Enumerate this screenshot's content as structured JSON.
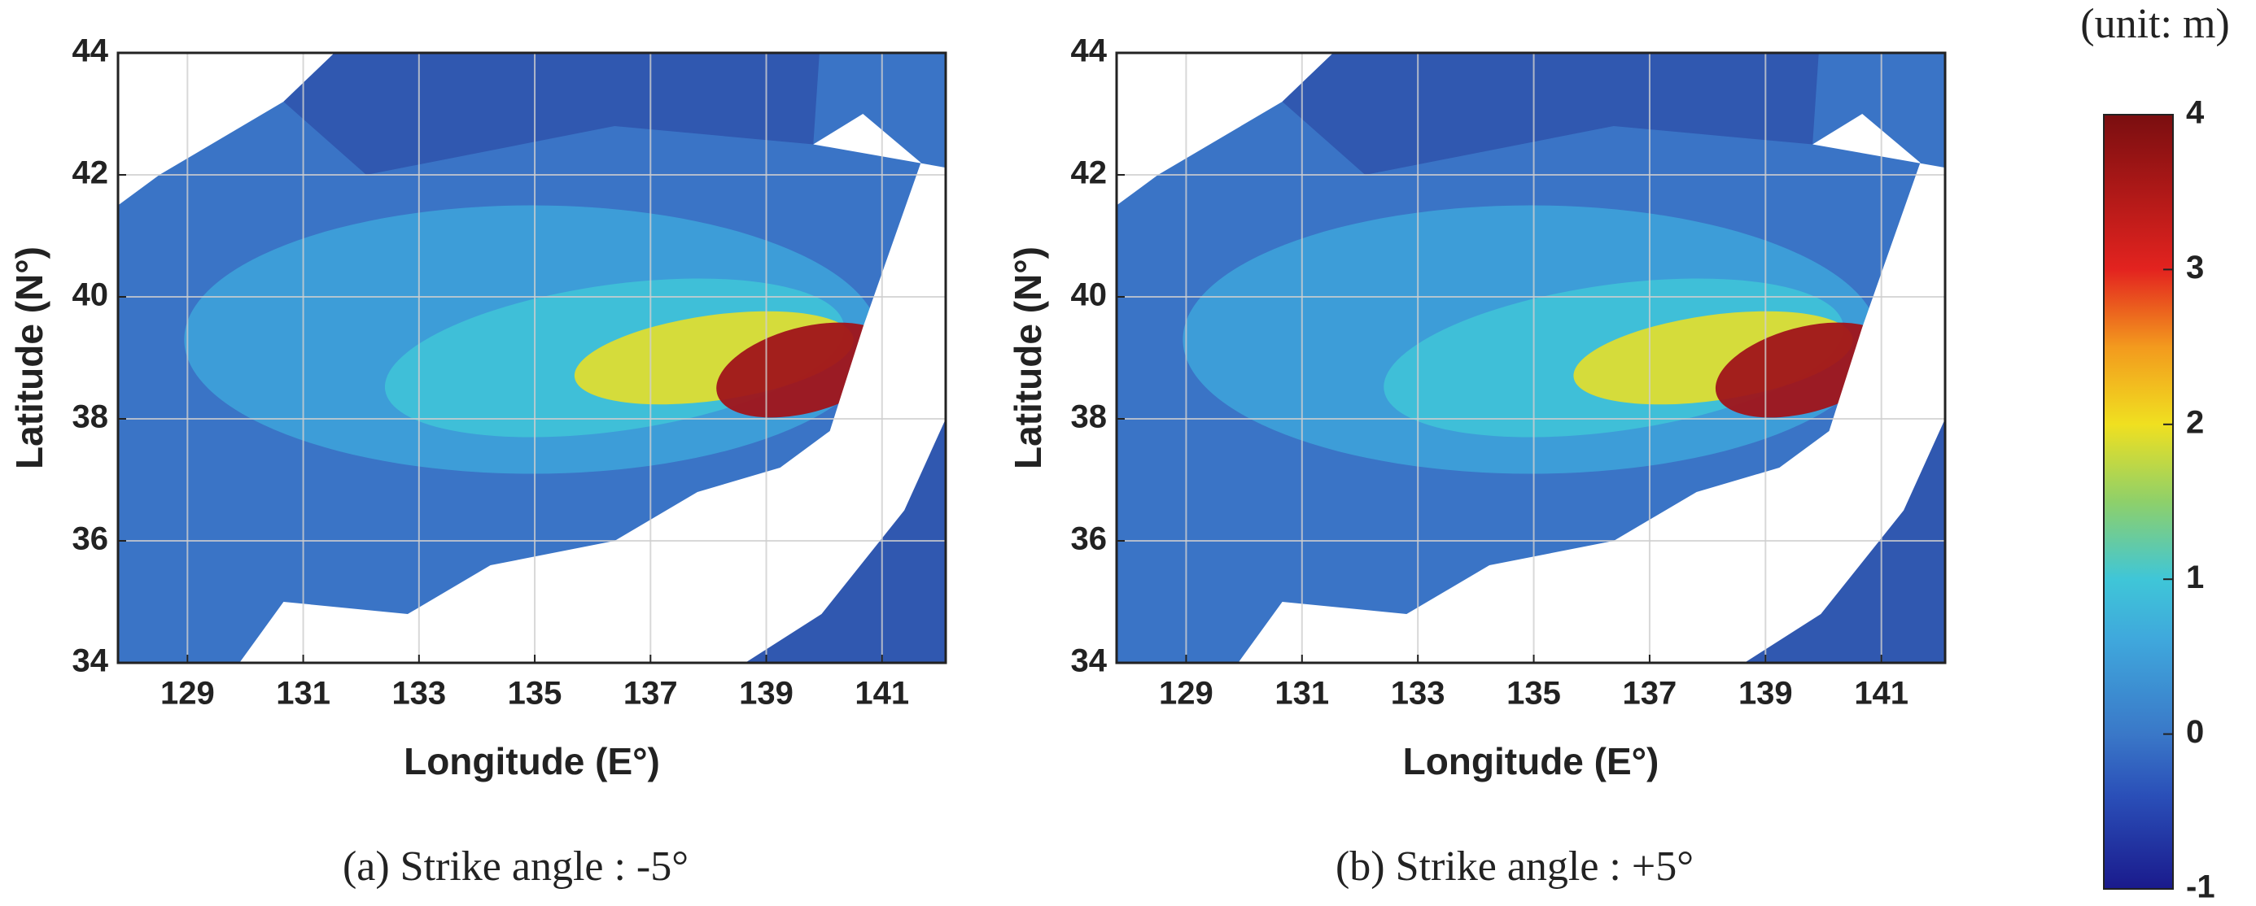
{
  "chart_data": [
    {
      "type": "map",
      "caption": "(a) Strike angle : -5°",
      "xlabel": "Longitude (E°)",
      "ylabel": "Latitude (N°)",
      "xlim": [
        127.8,
        142.1
      ],
      "ylim": [
        34,
        44
      ],
      "xticks": [
        129,
        131,
        133,
        135,
        137,
        139,
        141
      ],
      "yticks": [
        34,
        36,
        38,
        40,
        42,
        44
      ],
      "grid": true
    },
    {
      "type": "map",
      "caption": "(b) Strike angle : +5°",
      "xlabel": "Longitude (E°)",
      "ylabel": "Latitude (N°)",
      "xlim": [
        127.8,
        142.1
      ],
      "ylim": [
        34,
        44
      ],
      "xticks": [
        129,
        131,
        133,
        135,
        137,
        139,
        141
      ],
      "yticks": [
        34,
        36,
        38,
        40,
        42,
        44
      ],
      "grid": true
    },
    {
      "type": "colorbar",
      "title": "(unit: m)",
      "ylim": [
        -1,
        4
      ],
      "yticks": [
        -1,
        0,
        1,
        2,
        3,
        4
      ]
    }
  ]
}
